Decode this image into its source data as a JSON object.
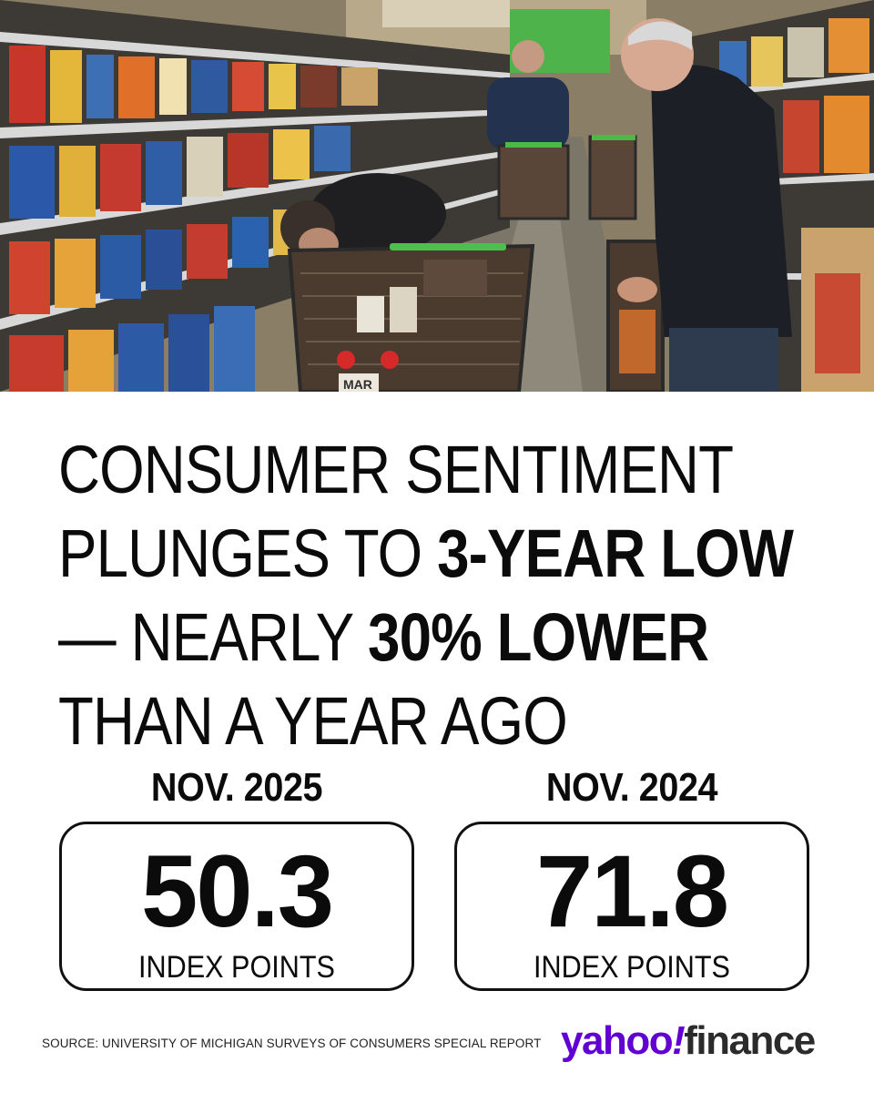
{
  "photo": {
    "description_icon": "grocery-aisle-photo-icon",
    "cart_brand": "MAR"
  },
  "headline": {
    "line1": "CONSUMER SENTIMENT",
    "line2_regular": "PLUNGES TO ",
    "line2_bold": "3-YEAR LOW",
    "line3_regular": "— NEARLY ",
    "line3_bold": "30% LOWER",
    "line4": "THAN A YEAR AGO"
  },
  "stats": [
    {
      "label": "NOV. 2025",
      "value": "50.3",
      "unit": "INDEX POINTS"
    },
    {
      "label": "NOV. 2024",
      "value": "71.8",
      "unit": "INDEX POINTS"
    }
  ],
  "footer": {
    "source": "SOURCE: UNIVERSITY OF MICHIGAN SURVEYS OF CONSUMERS SPECIAL REPORT",
    "brand_yahoo": "yahoo",
    "brand_bang": "!",
    "brand_finance": "finance"
  },
  "colors": {
    "brand_purple": "#6001d2",
    "text": "#0b0b0b",
    "background": "#ffffff"
  }
}
